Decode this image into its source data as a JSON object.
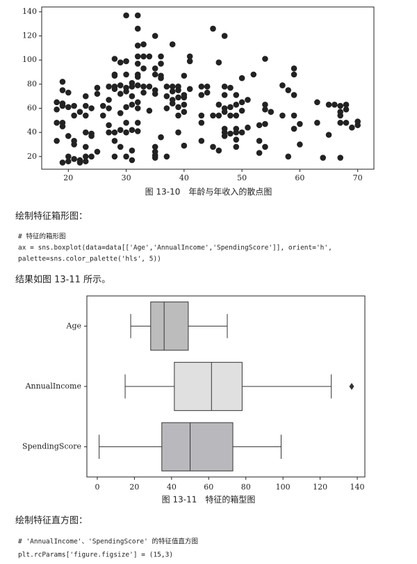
{
  "chart_data": [
    {
      "type": "scatter",
      "title": "图 13-10　年龄与年收入的散点图",
      "color": "#222222",
      "x": [
        18,
        18,
        18,
        18,
        19,
        19,
        19,
        19,
        19,
        19,
        19,
        20,
        20,
        20,
        20,
        20,
        21,
        21,
        21,
        21,
        21,
        22,
        22,
        22,
        23,
        23,
        23,
        23,
        23,
        23,
        23,
        24,
        24,
        24,
        24,
        25,
        25,
        25,
        26,
        26,
        27,
        27,
        27,
        27,
        27,
        28,
        28,
        28,
        28,
        28,
        28,
        28,
        28,
        29,
        29,
        29,
        29,
        29,
        29,
        30,
        30,
        30,
        30,
        30,
        30,
        30,
        30,
        30,
        31,
        31,
        31,
        31,
        31,
        31,
        31,
        32,
        32,
        32,
        32,
        32,
        32,
        32,
        32,
        32,
        32,
        32,
        32,
        33,
        33,
        33,
        33,
        33,
        34,
        34,
        34,
        35,
        35,
        35,
        35,
        35,
        35,
        35,
        35,
        35,
        36,
        36,
        36,
        36,
        36,
        37,
        37,
        37,
        37,
        38,
        38,
        38,
        38,
        38,
        39,
        39,
        39,
        39,
        39,
        39,
        40,
        40,
        40,
        40,
        40,
        40,
        41,
        41,
        41,
        43,
        43,
        43,
        43,
        43,
        44,
        44,
        45,
        45,
        45,
        46,
        46,
        46,
        46,
        47,
        47,
        47,
        47,
        47,
        47,
        47,
        47,
        48,
        48,
        48,
        48,
        49,
        49,
        49,
        49,
        49,
        49,
        49,
        50,
        50,
        50,
        50,
        51,
        51,
        52,
        53,
        53,
        53,
        54,
        54,
        54,
        54,
        54,
        55,
        57,
        57,
        58,
        58,
        59,
        59,
        59,
        59,
        59,
        60,
        60,
        63,
        63,
        64,
        65,
        65,
        66,
        67,
        67,
        67,
        67,
        67,
        68,
        68,
        68,
        69,
        70,
        70
      ],
      "values": [
        65,
        59,
        48,
        33,
        82,
        75,
        64,
        62,
        48,
        45,
        15,
        73,
        61,
        37,
        20,
        16,
        62,
        54,
        33,
        30,
        18,
        57,
        17,
        15,
        70,
        62,
        54,
        40,
        28,
        20,
        16,
        60,
        39,
        37,
        20,
        77,
        72,
        24,
        62,
        54,
        78,
        67,
        60,
        46,
        40,
        101,
        88,
        87,
        78,
        76,
        40,
        33,
        20,
        98,
        79,
        72,
        56,
        42,
        28,
        137,
        99,
        88,
        77,
        74,
        61,
        48,
        40,
        20,
        81,
        78,
        70,
        63,
        42,
        25,
        17,
        137,
        126,
        112,
        103,
        97,
        88,
        86,
        79,
        65,
        60,
        48,
        41,
        113,
        103,
        93,
        78,
        73,
        103,
        78,
        58,
        120,
        93,
        88,
        75,
        72,
        28,
        24,
        21,
        19,
        103,
        97,
        87,
        85,
        36,
        78,
        70,
        60,
        20,
        113,
        78,
        74,
        67,
        64,
        78,
        75,
        69,
        61,
        54,
        40,
        87,
        71,
        69,
        63,
        57,
        29,
        103,
        99,
        76,
        78,
        71,
        54,
        48,
        33,
        78,
        73,
        126,
        54,
        28,
        98,
        63,
        54,
        25,
        120,
        78,
        71,
        60,
        57,
        43,
        40,
        37,
        77,
        61,
        54,
        39,
        71,
        63,
        54,
        43,
        40,
        34,
        28,
        85,
        65,
        58,
        40,
        67,
        44,
        88,
        46,
        33,
        23,
        101,
        63,
        59,
        47,
        28,
        57,
        79,
        54,
        75,
        20,
        93,
        88,
        71,
        54,
        43,
        47,
        30,
        65,
        48,
        19,
        63,
        38,
        63,
        62,
        57,
        54,
        48,
        19,
        63,
        59,
        48,
        44,
        49,
        46
      ],
      "xlim": [
        15.4,
        72.8
      ],
      "ylim": [
        9.5,
        144
      ],
      "xticks": [
        20,
        30,
        40,
        50,
        60,
        70
      ],
      "yticks": [
        20,
        40,
        60,
        80,
        100,
        120,
        140
      ]
    },
    {
      "type": "box",
      "title": "图 13-11　特征的箱型图",
      "orient": "h",
      "categories": [
        "Age",
        "AnnualIncome",
        "SpendingScore"
      ],
      "colors": [
        "#bcbcbc",
        "#e0e0e0",
        "#b9b9bd"
      ],
      "min": [
        18,
        15,
        1
      ],
      "q1": [
        28.75,
        41.5,
        34.75
      ],
      "median": [
        36,
        61.5,
        50
      ],
      "q3": [
        49,
        78,
        73
      ],
      "max": [
        70,
        126,
        99
      ],
      "outliers": [
        [],
        [
          137
        ],
        []
      ],
      "xlim": [
        -5.6,
        144.1
      ],
      "xticks": [
        0,
        20,
        40,
        60,
        80,
        100,
        120,
        140
      ]
    }
  ],
  "paragraphs": [
    "绘制特征箱形图：",
    "结果如图 13-11 所示。",
    "绘制特征直方图："
  ],
  "code_blocks": [
    [
      "# 特征的箱形图",
      "ax = sns.boxplot(data=data[['Age','AnnualIncome','SpendingScore']], orient='h',",
      "    palette=sns.color_palette('hls', 5))"
    ],
    [
      "# 'AnnualIncome'、'SpendingScore' 的特征值直方图",
      "plt.rcParams['figure.figsize'] = (15,3)"
    ]
  ]
}
